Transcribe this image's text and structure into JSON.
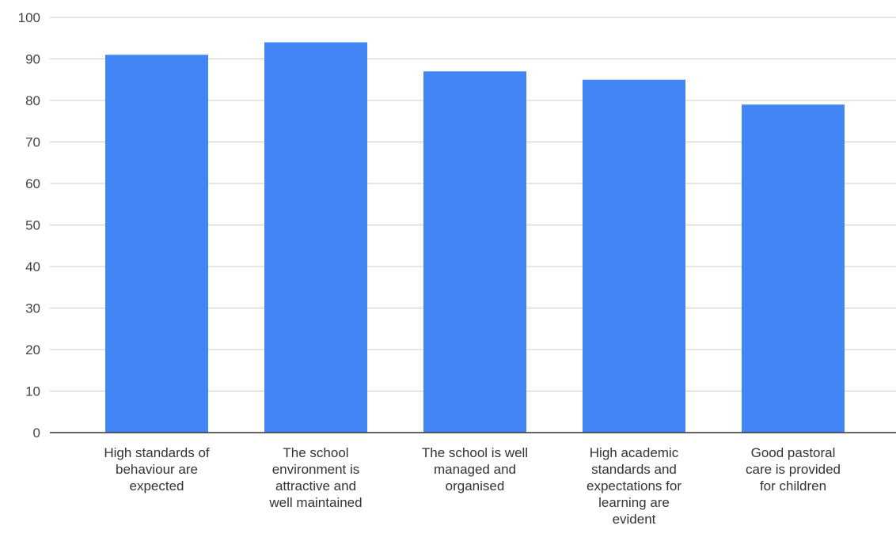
{
  "chart_data": {
    "type": "bar",
    "title": "",
    "xlabel": "",
    "ylabel": "",
    "ylim": [
      0,
      100
    ],
    "y_ticks": [
      "0",
      "10",
      "20",
      "30",
      "40",
      "50",
      "60",
      "70",
      "80",
      "90",
      "100"
    ],
    "grid": true,
    "legend": "none",
    "bar_color": "#4285f4",
    "categories": [
      [
        "High standards of",
        "behaviour are",
        "expected"
      ],
      [
        "The school",
        "environment is",
        "attractive and",
        "well maintained"
      ],
      [
        "The school is well",
        "managed and",
        "organised"
      ],
      [
        "High academic",
        "standards and",
        "expectations for",
        "learning are",
        "evident"
      ],
      [
        "Good pastoral",
        "care is provided",
        "for children"
      ]
    ],
    "values": [
      91,
      94,
      87,
      85,
      79
    ]
  }
}
